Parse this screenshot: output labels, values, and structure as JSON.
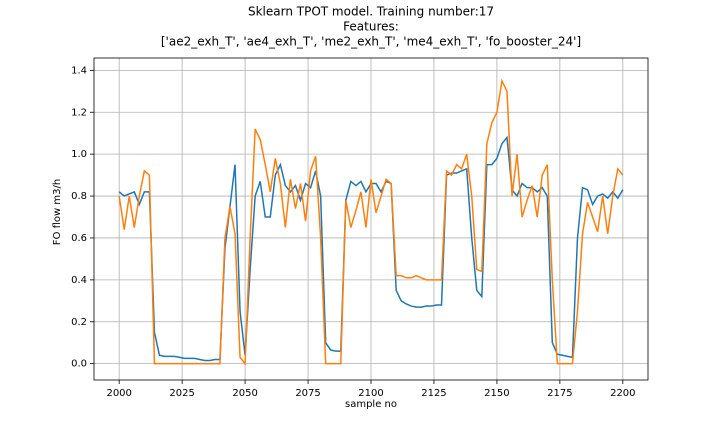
{
  "chart_data": {
    "type": "line",
    "title": [
      "Sklearn TPOT model. Training number:17",
      "Features:",
      "['ae2_exh_T', 'ae4_exh_T', 'me2_exh_T', 'me4_exh_T', 'fo_booster_24']"
    ],
    "xlabel": "sample no",
    "ylabel": "FO flow m3/h",
    "x": [
      2000,
      2002,
      2004,
      2006,
      2008,
      2010,
      2012,
      2014,
      2016,
      2018,
      2020,
      2022,
      2024,
      2026,
      2028,
      2030,
      2032,
      2034,
      2036,
      2038,
      2040,
      2042,
      2044,
      2046,
      2048,
      2050,
      2052,
      2054,
      2056,
      2058,
      2060,
      2062,
      2064,
      2066,
      2068,
      2070,
      2072,
      2074,
      2076,
      2078,
      2080,
      2082,
      2084,
      2086,
      2088,
      2090,
      2092,
      2094,
      2096,
      2098,
      2100,
      2102,
      2104,
      2106,
      2108,
      2110,
      2112,
      2114,
      2116,
      2118,
      2120,
      2122,
      2124,
      2126,
      2128,
      2130,
      2132,
      2134,
      2136,
      2138,
      2140,
      2142,
      2144,
      2146,
      2148,
      2150,
      2152,
      2154,
      2156,
      2158,
      2160,
      2162,
      2164,
      2166,
      2168,
      2170,
      2172,
      2174,
      2176,
      2178,
      2180,
      2182,
      2184,
      2186,
      2188,
      2190,
      2192,
      2194,
      2196,
      2198,
      2200
    ],
    "series": [
      {
        "color": "#1f77b4",
        "values": [
          0.82,
          0.8,
          0.81,
          0.82,
          0.76,
          0.82,
          0.82,
          0.15,
          0.04,
          0.035,
          0.035,
          0.035,
          0.03,
          0.025,
          0.025,
          0.025,
          0.02,
          0.015,
          0.015,
          0.02,
          0.02,
          0.55,
          0.75,
          0.95,
          0.25,
          0.04,
          0.45,
          0.8,
          0.87,
          0.7,
          0.7,
          0.9,
          0.95,
          0.85,
          0.82,
          0.85,
          0.78,
          0.86,
          0.84,
          0.92,
          0.8,
          0.1,
          0.065,
          0.06,
          0.06,
          0.78,
          0.87,
          0.85,
          0.87,
          0.82,
          0.86,
          0.86,
          0.82,
          0.87,
          0.86,
          0.35,
          0.3,
          0.285,
          0.275,
          0.27,
          0.27,
          0.275,
          0.275,
          0.28,
          0.28,
          0.9,
          0.91,
          0.91,
          0.92,
          0.93,
          0.6,
          0.35,
          0.32,
          0.95,
          0.95,
          0.98,
          1.05,
          1.08,
          0.83,
          0.8,
          0.86,
          0.84,
          0.84,
          0.82,
          0.84,
          0.8,
          0.1,
          0.045,
          0.04,
          0.035,
          0.03,
          0.6,
          0.84,
          0.83,
          0.76,
          0.8,
          0.81,
          0.79,
          0.82,
          0.79,
          0.83
        ]
      },
      {
        "color": "#ff7f0e",
        "values": [
          0.8,
          0.64,
          0.8,
          0.65,
          0.8,
          0.92,
          0.9,
          0.0,
          0.0,
          0.0,
          0.0,
          0.0,
          0.0,
          0.0,
          0.0,
          0.0,
          0.0,
          0.0,
          0.0,
          0.0,
          0.0,
          0.6,
          0.75,
          0.62,
          0.03,
          0.0,
          0.6,
          1.12,
          1.07,
          0.95,
          0.82,
          0.98,
          0.86,
          0.65,
          0.88,
          0.74,
          0.86,
          0.68,
          0.92,
          0.99,
          0.6,
          0.0,
          0.0,
          0.0,
          0.0,
          0.78,
          0.65,
          0.73,
          0.82,
          0.65,
          0.88,
          0.72,
          0.8,
          0.88,
          0.86,
          0.42,
          0.42,
          0.41,
          0.41,
          0.42,
          0.41,
          0.4,
          0.4,
          0.4,
          0.4,
          0.92,
          0.9,
          0.95,
          0.93,
          1.0,
          0.8,
          0.45,
          0.44,
          1.05,
          1.15,
          1.2,
          1.35,
          1.3,
          0.8,
          1.0,
          0.7,
          0.78,
          0.85,
          0.7,
          0.9,
          0.95,
          0.4,
          0.0,
          0.0,
          0.0,
          0.0,
          0.25,
          0.62,
          0.77,
          0.7,
          0.63,
          0.8,
          0.62,
          0.8,
          0.93,
          0.9
        ]
      }
    ],
    "xlim": [
      1990,
      2210
    ],
    "ylim": [
      -0.078,
      1.459
    ],
    "xticks": [
      2000,
      2025,
      2050,
      2075,
      2100,
      2125,
      2150,
      2175,
      2200
    ],
    "yticks": [
      {
        "value": 0,
        "label": "0.0"
      },
      0.2,
      0.4,
      0.6,
      0.8,
      {
        "value": 1,
        "label": "1.0"
      },
      1.2,
      1.4
    ],
    "grid": true
  }
}
